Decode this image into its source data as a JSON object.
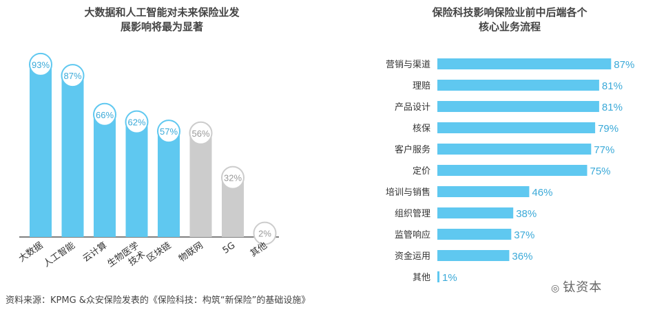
{
  "chart_data": [
    {
      "type": "bar",
      "title": "大数据和人工智能对未来保险业发展影响将最为显著",
      "title_lines": [
        "大数据和人工智能对未来保险业发",
        "展影响将最为显著"
      ],
      "categories": [
        "大数据",
        "人工智能",
        "云计算",
        "生物医学技术",
        "区块链",
        "物联网",
        "5G",
        "其他"
      ],
      "category_lines": [
        [
          "大数据"
        ],
        [
          "人工智能"
        ],
        [
          "云计算"
        ],
        [
          "生物医学",
          "技术"
        ],
        [
          "区块链"
        ],
        [
          "物联网"
        ],
        [
          "5G"
        ],
        [
          "其他"
        ]
      ],
      "values": [
        93,
        87,
        66,
        62,
        57,
        56,
        32,
        2
      ],
      "labels": [
        "93%",
        "87%",
        "66%",
        "62%",
        "57%",
        "56%",
        "32%",
        "2%"
      ],
      "colors": [
        "#5fc8f0",
        "#5fc8f0",
        "#5fc8f0",
        "#5fc8f0",
        "#5fc8f0",
        "#cccccc",
        "#cccccc",
        "#cccccc"
      ],
      "ylim": [
        0,
        100
      ],
      "grid": false
    },
    {
      "type": "bar",
      "orientation": "horizontal",
      "title": "保险科技影响保险业前中后端各个核心业务流程",
      "title_lines": [
        "保险科技影响保险业前中后端各个",
        "核心业务流程"
      ],
      "categories": [
        "营销与渠道",
        "理赔",
        "产品设计",
        "核保",
        "客户服务",
        "定价",
        "培训与销售",
        "组织管理",
        "监管响应",
        "资金运用",
        "其他"
      ],
      "values": [
        87,
        81,
        81,
        79,
        77,
        75,
        46,
        38,
        37,
        36,
        1
      ],
      "labels": [
        "87%",
        "81%",
        "81%",
        "79%",
        "77%",
        "75%",
        "46%",
        "38%",
        "37%",
        "36%",
        "1%"
      ],
      "color": "#5fc8f0",
      "xlim": [
        0,
        100
      ],
      "grid": false
    }
  ],
  "source": "资料来源：KPMG &众安保险发表的《保险科技：构筑“新保险”的基础设施》",
  "watermark": "钛资本",
  "watermark_icon": "wechat-icon"
}
